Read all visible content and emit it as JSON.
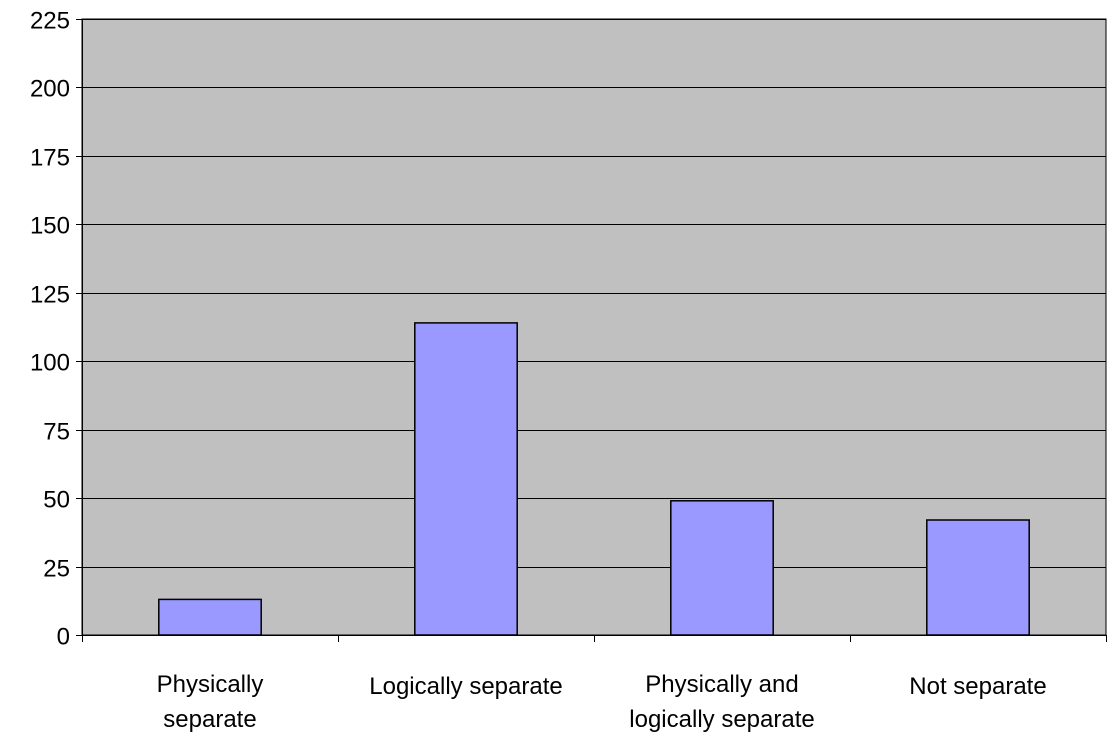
{
  "chart_data": {
    "type": "bar",
    "categories": [
      "Physically separate",
      "Logically separate",
      "Physically and logically separate",
      "Not separate"
    ],
    "category_label_lines": [
      [
        "Physically",
        "separate"
      ],
      [
        "Logically separate"
      ],
      [
        "Physically and",
        "logically separate"
      ],
      [
        "Not separate"
      ]
    ],
    "values": [
      13,
      114,
      49,
      42
    ],
    "yticks": [
      0,
      25,
      50,
      75,
      100,
      125,
      150,
      175,
      200,
      225
    ],
    "ylim": [
      0,
      225
    ],
    "title": "",
    "xlabel": "",
    "ylabel": "",
    "grid": true,
    "legend": "none",
    "colors": {
      "plot_background": "#c0c0c0",
      "bar_fill": "#9999ff",
      "bar_stroke": "#000000",
      "gridline": "#000000",
      "axis": "#000000"
    }
  }
}
